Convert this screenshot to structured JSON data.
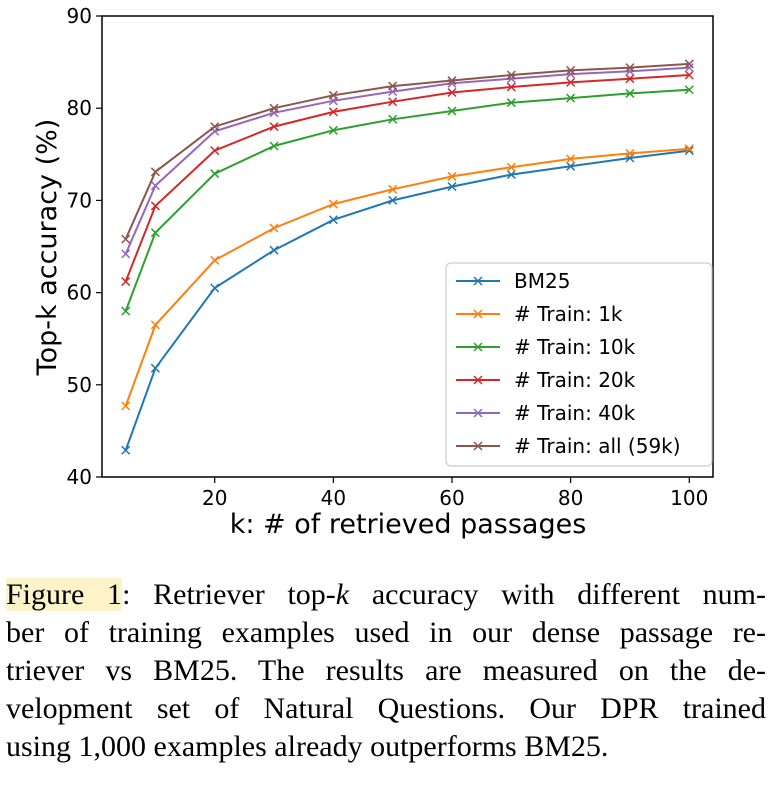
{
  "chart_data": {
    "type": "line",
    "title": "",
    "xlabel": "k: # of retrieved passages",
    "ylabel": "Top-k accuracy (%)",
    "xlim": [
      1,
      104
    ],
    "ylim": [
      40,
      90
    ],
    "xticks": [
      20,
      40,
      60,
      80,
      100
    ],
    "yticks": [
      40,
      50,
      60,
      70,
      80,
      90
    ],
    "legend_position": "lower-right",
    "grid": false,
    "x": [
      5,
      10,
      20,
      30,
      40,
      50,
      60,
      70,
      80,
      90,
      100
    ],
    "series": [
      {
        "name": "BM25",
        "color": "#1f77b4",
        "marker": "x",
        "values": [
          42.9,
          51.8,
          60.5,
          64.6,
          67.9,
          70.0,
          71.5,
          72.8,
          73.7,
          74.6,
          75.4
        ]
      },
      {
        "name": "# Train: 1k",
        "color": "#ff7f0e",
        "marker": "x",
        "values": [
          47.7,
          56.5,
          63.5,
          67.0,
          69.6,
          71.2,
          72.6,
          73.6,
          74.5,
          75.1,
          75.6
        ]
      },
      {
        "name": "# Train: 10k",
        "color": "#2ca02c",
        "marker": "x",
        "values": [
          58.0,
          66.5,
          72.9,
          75.9,
          77.6,
          78.8,
          79.7,
          80.6,
          81.1,
          81.6,
          82.0
        ]
      },
      {
        "name": "# Train: 20k",
        "color": "#d62728",
        "marker": "x",
        "values": [
          61.2,
          69.4,
          75.4,
          78.0,
          79.6,
          80.7,
          81.7,
          82.3,
          82.8,
          83.2,
          83.6
        ]
      },
      {
        "name": "# Train: 40k",
        "color": "#9467bd",
        "marker": "x",
        "values": [
          64.2,
          71.6,
          77.5,
          79.5,
          80.8,
          81.8,
          82.7,
          83.2,
          83.7,
          84.0,
          84.4
        ]
      },
      {
        "name": "# Train: all (59k)",
        "color": "#8c564b",
        "marker": "x",
        "values": [
          65.8,
          73.1,
          78.0,
          80.0,
          81.4,
          82.4,
          83.0,
          83.6,
          84.1,
          84.4,
          84.8
        ]
      }
    ]
  },
  "caption": {
    "label": "Figure 1",
    "line1_pre": ": Retriever top-",
    "k": "k",
    "line1_post": " accuracy with different num-",
    "line2": "ber of training examples used in our dense passage re-",
    "line3": "triever vs BM25.  The results are measured on the de-",
    "line4": "velopment set of Natural Questions.  Our DPR trained",
    "line5": "using 1,000 examples already outperforms BM25."
  }
}
